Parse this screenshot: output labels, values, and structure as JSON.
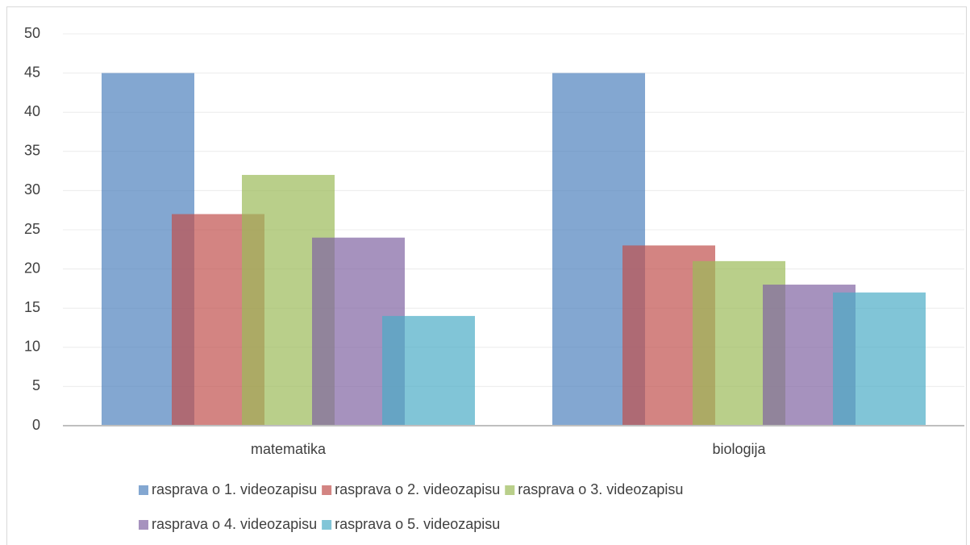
{
  "chart_data": {
    "type": "bar",
    "categories": [
      "matematika",
      "biologija"
    ],
    "series": [
      {
        "name": "rasprava o 1. videozapisu",
        "color": "#4f81bd",
        "values": [
          45,
          45
        ]
      },
      {
        "name": "rasprava o 2. videozapisu",
        "color": "#c0504d",
        "values": [
          27,
          23
        ]
      },
      {
        "name": "rasprava o 3. videozapisu",
        "color": "#9bbb59",
        "values": [
          32,
          21
        ]
      },
      {
        "name": "rasprava o 4. videozapisu",
        "color": "#8064a2",
        "values": [
          24,
          18
        ]
      },
      {
        "name": "rasprava o 5. videozapisu",
        "color": "#4bacc6",
        "values": [
          14,
          17
        ]
      }
    ],
    "ylim": [
      0,
      50
    ],
    "yticks": [
      0,
      5,
      10,
      15,
      20,
      25,
      30,
      35,
      40,
      45,
      50
    ],
    "grid": true,
    "legend": "bottom"
  }
}
